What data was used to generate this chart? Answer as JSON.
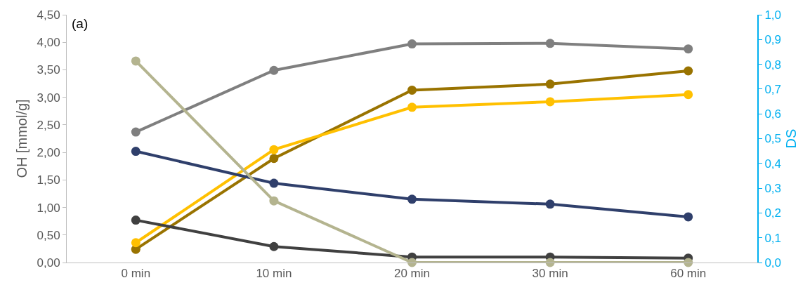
{
  "chart_data": {
    "type": "line",
    "ylabel": "OH [mmol/g]",
    "y2label": "DS",
    "annotations": [
      "(a)"
    ],
    "categories": [
      "0 min",
      "10 min",
      "20 min",
      "30 min",
      "60 min"
    ],
    "series": [
      {
        "color": "#7f7f7f",
        "values": [
          2.37,
          3.49,
          3.97,
          3.98,
          3.88
        ]
      },
      {
        "color": "#997300",
        "values": [
          0.24,
          1.89,
          3.13,
          3.24,
          3.48
        ]
      },
      {
        "color": "#ffc000",
        "values": [
          0.36,
          2.05,
          2.82,
          2.92,
          3.05
        ]
      },
      {
        "color": "#2f3f6b",
        "values": [
          2.02,
          1.44,
          1.15,
          1.06,
          0.83
        ]
      },
      {
        "color": "#404040",
        "values": [
          0.77,
          0.29,
          0.1,
          0.1,
          0.08
        ]
      },
      {
        "color": "#b4b48f",
        "values": [
          3.66,
          1.12,
          0,
          0,
          0
        ]
      }
    ],
    "ylim": [
      0,
      4.5
    ],
    "yticks": [
      {
        "value": 0,
        "label": "0,00"
      },
      {
        "value": 0.5,
        "label": "0,50"
      },
      {
        "value": 1,
        "label": "1,00"
      },
      {
        "value": 1.5,
        "label": "1,50"
      },
      {
        "value": 2,
        "label": "2,00"
      },
      {
        "value": 2.5,
        "label": "2,50"
      },
      {
        "value": 3,
        "label": "3,00"
      },
      {
        "value": 3.5,
        "label": "3,50"
      },
      {
        "value": 4,
        "label": "4,00"
      },
      {
        "value": 4.5,
        "label": "4,50"
      }
    ],
    "y2lim": [
      0,
      1
    ],
    "y2ticks": [
      {
        "value": 0,
        "label": "0,0"
      },
      {
        "value": 0.1,
        "label": "0,1"
      },
      {
        "value": 0.2,
        "label": "0,2"
      },
      {
        "value": 0.3,
        "label": "0,3"
      },
      {
        "value": 0.4,
        "label": "0,4"
      },
      {
        "value": 0.5,
        "label": "0,5"
      },
      {
        "value": 0.6,
        "label": "0,6"
      },
      {
        "value": 0.7,
        "label": "0,7"
      },
      {
        "value": 0.8,
        "label": "0,8"
      },
      {
        "value": 0.9,
        "label": "0,9"
      },
      {
        "value": 1,
        "label": "1,0"
      }
    ],
    "marker": "circle",
    "line_style": "solid",
    "legend": false
  }
}
